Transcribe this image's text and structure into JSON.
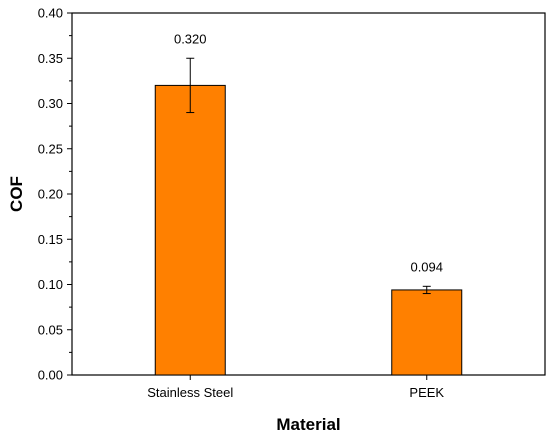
{
  "chart_data": {
    "type": "bar",
    "categories": [
      "Stainless Steel",
      "PEEK"
    ],
    "values": [
      0.32,
      0.094
    ],
    "errors": [
      0.03,
      0.004
    ],
    "data_labels": [
      "0.320",
      "0.094"
    ],
    "title": "",
    "xlabel": "Material",
    "ylabel": "COF",
    "ylim": [
      0,
      0.4
    ],
    "yticks": [
      0.0,
      0.05,
      0.1,
      0.15,
      0.2,
      0.25,
      0.3,
      0.35,
      0.4
    ],
    "ytick_labels": [
      "0.00",
      "0.05",
      "0.10",
      "0.15",
      "0.20",
      "0.25",
      "0.30",
      "0.35",
      "0.40"
    ],
    "grid": false,
    "bar_color": "#ff8000",
    "bar_edge_color": "#000000"
  }
}
